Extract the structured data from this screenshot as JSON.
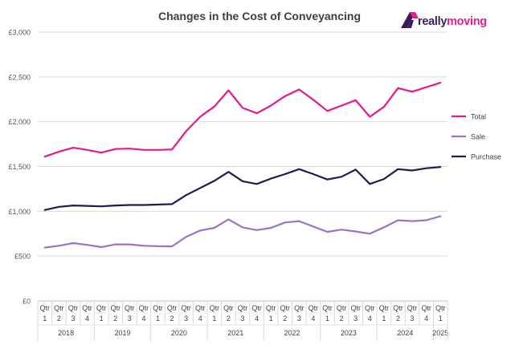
{
  "chart_data": {
    "type": "line",
    "title": "Changes in the Cost of Conveyancing",
    "ylim": [
      0,
      3000
    ],
    "yticks": [
      "£0",
      "£500",
      "£1,000",
      "£1,500",
      "£2,000",
      "£2,500",
      "£3,000"
    ],
    "ytick_values": [
      0,
      500,
      1000,
      1500,
      2000,
      2500,
      3000
    ],
    "quarter_prefix": "Qtr",
    "categories": [
      "Qtr 1",
      "Qtr 2",
      "Qtr 3",
      "Qtr 4",
      "Qtr 1",
      "Qtr 2",
      "Qtr 3",
      "Qtr 4",
      "Qtr 1",
      "Qtr 2",
      "Qtr 3",
      "Qtr 4",
      "Qtr 1",
      "Qtr 2",
      "Qtr 3",
      "Qtr 4",
      "Qtr 1",
      "Qtr 2",
      "Qtr 3",
      "Qtr 4",
      "Qtr 1",
      "Qtr 2",
      "Qtr 3",
      "Qtr 4",
      "Qtr 1",
      "Qtr 2",
      "Qtr 3",
      "Qtr 4",
      "Qtr 1"
    ],
    "quarters": [
      "1",
      "2",
      "3",
      "4",
      "1",
      "2",
      "3",
      "4",
      "1",
      "2",
      "3",
      "4",
      "1",
      "2",
      "3",
      "4",
      "1",
      "2",
      "3",
      "4",
      "1",
      "2",
      "3",
      "4",
      "1",
      "2",
      "3",
      "4",
      "1"
    ],
    "years": [
      {
        "label": "2018",
        "count": 4
      },
      {
        "label": "2019",
        "count": 4
      },
      {
        "label": "2020",
        "count": 4
      },
      {
        "label": "2021",
        "count": 4
      },
      {
        "label": "2022",
        "count": 4
      },
      {
        "label": "2023",
        "count": 4
      },
      {
        "label": "2024",
        "count": 4
      },
      {
        "label": "2025",
        "count": 1
      }
    ],
    "grid": true,
    "legend_position": "right",
    "series": [
      {
        "name": "Total",
        "color": "#e6198a",
        "values": [
          1610,
          1665,
          1710,
          1685,
          1655,
          1695,
          1700,
          1685,
          1685,
          1690,
          1895,
          2055,
          2170,
          2350,
          2155,
          2095,
          2180,
          2285,
          2360,
          2245,
          2120,
          2180,
          2240,
          2055,
          2165,
          2375,
          2335,
          2385,
          2435
        ]
      },
      {
        "name": "Sale",
        "color": "#9b72c4",
        "values": [
          595,
          615,
          645,
          625,
          600,
          630,
          630,
          615,
          610,
          608,
          715,
          785,
          815,
          910,
          820,
          790,
          815,
          875,
          890,
          830,
          770,
          795,
          775,
          750,
          820,
          900,
          890,
          900,
          945
        ]
      },
      {
        "name": "Purchase",
        "color": "#2b1650",
        "values": [
          1015,
          1050,
          1065,
          1060,
          1055,
          1065,
          1070,
          1070,
          1075,
          1080,
          1180,
          1260,
          1340,
          1440,
          1335,
          1305,
          1365,
          1415,
          1470,
          1415,
          1355,
          1385,
          1465,
          1305,
          1360,
          1470,
          1455,
          1480,
          1495
        ]
      }
    ]
  },
  "brand": {
    "name_part1": "really",
    "name_part2": "moving",
    "icon": "house-roof-logo-icon",
    "colors": {
      "primary": "#3a1d5c",
      "accent": "#e91e8c"
    }
  }
}
